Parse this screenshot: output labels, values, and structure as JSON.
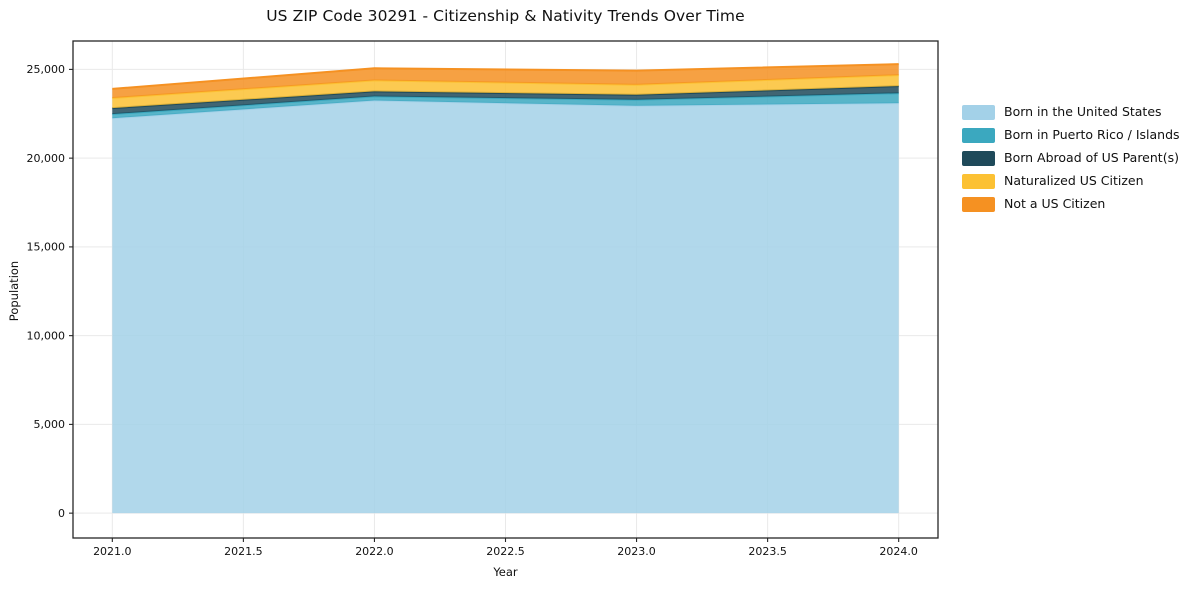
{
  "title": "US ZIP Code 30291 - Citizenship & Nativity Trends Over Time",
  "chart_data": {
    "type": "area",
    "stacked": true,
    "title": "US ZIP Code 30291 - Citizenship & Nativity Trends Over Time",
    "xlabel": "Year",
    "ylabel": "Population",
    "x": [
      2021,
      2022,
      2023,
      2024
    ],
    "series": [
      {
        "name": "Born in the United States",
        "color": "#A3D1E8",
        "values": [
          22250,
          23250,
          22950,
          23100
        ]
      },
      {
        "name": "Born in Puerto Rico / Islands",
        "color": "#3BA8BF",
        "values": [
          230,
          230,
          340,
          560
        ]
      },
      {
        "name": "Born Abroad of US Parent(s)",
        "color": "#1F4A5A",
        "values": [
          340,
          280,
          280,
          400
        ]
      },
      {
        "name": "Naturalized US Citizen",
        "color": "#FCC133",
        "values": [
          570,
          620,
          570,
          620
        ]
      },
      {
        "name": "Not a US Citizen",
        "color": "#F59122",
        "values": [
          510,
          680,
          790,
          620
        ]
      }
    ],
    "totals": [
      23900,
      25060,
      24930,
      25300
    ],
    "x_ticks": [
      "2021.0",
      "2021.5",
      "2022.0",
      "2022.5",
      "2023.0",
      "2023.5",
      "2024.0"
    ],
    "x_tick_values": [
      2021,
      2021.5,
      2022,
      2022.5,
      2023,
      2023.5,
      2024
    ],
    "y_ticks": [
      "0",
      "5,000",
      "10,000",
      "15,000",
      "20,000",
      "25,000"
    ],
    "y_tick_values": [
      0,
      5000,
      10000,
      15000,
      20000,
      25000
    ],
    "x_range": [
      2020.85,
      2024.15
    ],
    "y_range": [
      -1400,
      26600
    ],
    "grid": true,
    "grid_color": "#e9e9e9",
    "legend_position": "right-outside"
  }
}
